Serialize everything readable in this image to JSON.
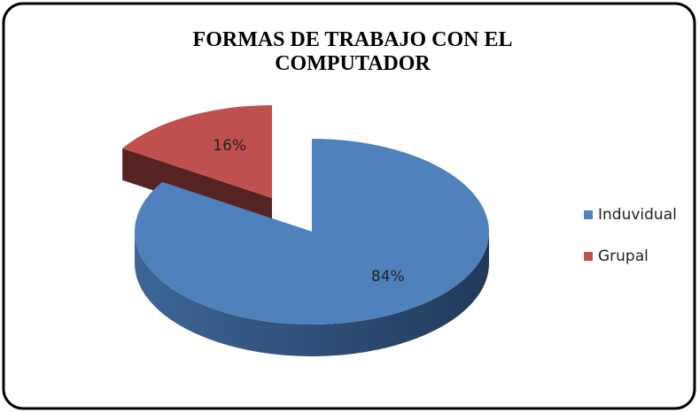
{
  "chart_data": {
    "type": "pie",
    "title": "FORMAS DE TRABAJO CON EL COMPUTADOR",
    "categories": [
      "Induvidual",
      "Grupal"
    ],
    "values": [
      84,
      16
    ],
    "value_labels": [
      "84%",
      "16%"
    ],
    "colors": [
      "#4f81bd",
      "#c0504d"
    ],
    "legend": "right"
  }
}
